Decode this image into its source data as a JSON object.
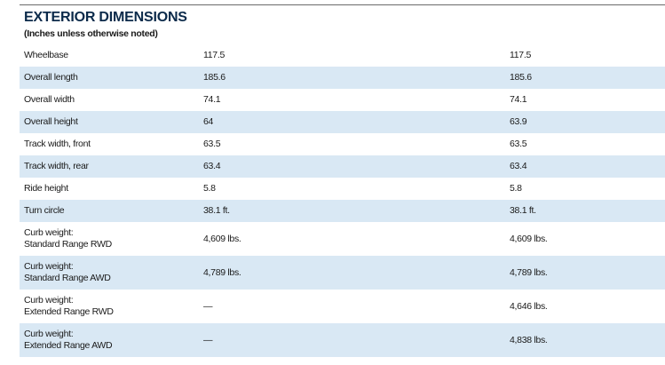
{
  "title": "EXTERIOR DIMENSIONS",
  "subtitle": "(Inches unless otherwise noted)",
  "rows": [
    {
      "label": [
        "Wheelbase"
      ],
      "v1": "117.5",
      "v2": "117.5"
    },
    {
      "label": [
        "Overall length"
      ],
      "v1": "185.6",
      "v2": "185.6"
    },
    {
      "label": [
        "Overall width"
      ],
      "v1": "74.1",
      "v2": "74.1"
    },
    {
      "label": [
        "Overall height"
      ],
      "v1": "64",
      "v2": "63.9"
    },
    {
      "label": [
        "Track width, front"
      ],
      "v1": "63.5",
      "v2": "63.5"
    },
    {
      "label": [
        "Track width, rear"
      ],
      "v1": "63.4",
      "v2": "63.4"
    },
    {
      "label": [
        "Ride height"
      ],
      "v1": "5.8",
      "v2": "5.8"
    },
    {
      "label": [
        "Turn circle"
      ],
      "v1": "38.1 ft.",
      "v2": "38.1 ft."
    },
    {
      "label": [
        "Curb weight:",
        "Standard Range RWD"
      ],
      "v1": "4,609 lbs.",
      "v2": "4,609 lbs."
    },
    {
      "label": [
        "Curb weight:",
        "Standard Range AWD"
      ],
      "v1": "4,789 lbs.",
      "v2": "4,789 lbs."
    },
    {
      "label": [
        "Curb weight:",
        "Extended Range RWD"
      ],
      "v1": "—",
      "v2": "4,646 lbs."
    },
    {
      "label": [
        "Curb weight:",
        "Extended Range AWD"
      ],
      "v1": "—",
      "v2": "4,838 lbs."
    }
  ]
}
